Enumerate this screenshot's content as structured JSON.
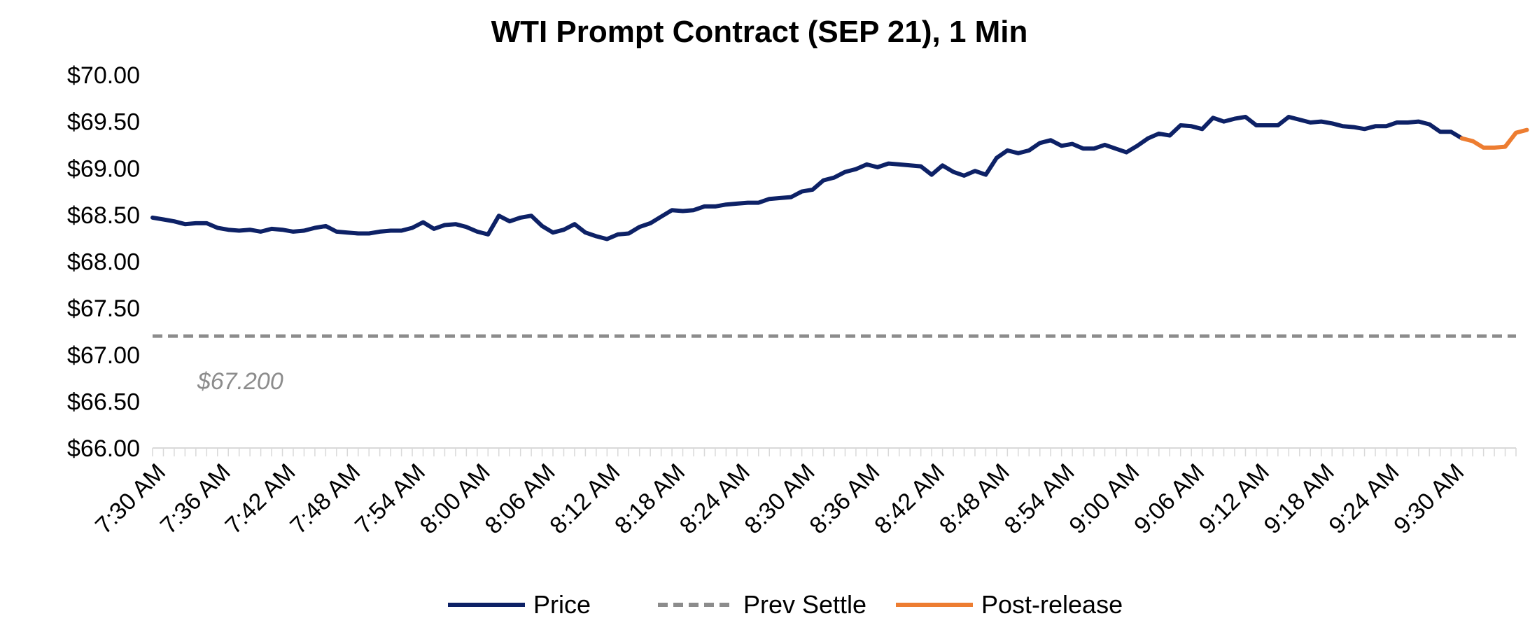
{
  "chart_data": {
    "type": "line",
    "title": "WTI Prompt Contract (SEP 21), 1 Min",
    "xlabel": "",
    "ylabel": "",
    "ylim": [
      66.0,
      70.0
    ],
    "yticks": [
      66.0,
      66.5,
      67.0,
      67.5,
      68.0,
      68.5,
      69.0,
      69.5,
      70.0
    ],
    "ytick_labels": [
      "$66.00",
      "$66.50",
      "$67.00",
      "$67.50",
      "$68.00",
      "$68.50",
      "$69.00",
      "$69.50",
      "$70.00"
    ],
    "x_minutes": 126,
    "x_tick_step_minutes": 6,
    "x_tick_labels": [
      "7:30 AM",
      "7:36 AM",
      "7:42 AM",
      "7:48 AM",
      "7:54 AM",
      "8:00 AM",
      "8:06 AM",
      "8:12 AM",
      "8:18 AM",
      "8:24 AM",
      "8:30 AM",
      "8:36 AM",
      "8:42 AM",
      "8:48 AM",
      "8:54 AM",
      "9:00 AM",
      "9:06 AM",
      "9:12 AM",
      "9:18 AM",
      "9:24 AM",
      "9:30 AM"
    ],
    "series": [
      {
        "name": "Price",
        "color": "#0d2166",
        "style": "solid",
        "start_minute": 0,
        "values": [
          68.47,
          68.45,
          68.43,
          68.4,
          68.41,
          68.41,
          68.36,
          68.34,
          68.33,
          68.34,
          68.32,
          68.35,
          68.34,
          68.32,
          68.33,
          68.36,
          68.38,
          68.32,
          68.31,
          68.3,
          68.3,
          68.32,
          68.33,
          68.33,
          68.36,
          68.42,
          68.35,
          68.39,
          68.4,
          68.37,
          68.32,
          68.29,
          68.49,
          68.43,
          68.47,
          68.49,
          68.38,
          68.31,
          68.34,
          68.4,
          68.31,
          68.27,
          68.24,
          68.29,
          68.3,
          68.37,
          68.41,
          68.48,
          68.55,
          68.54,
          68.55,
          68.59,
          68.59,
          68.61,
          68.62,
          68.63,
          68.63,
          68.67,
          68.68,
          68.69,
          68.75,
          68.77,
          68.87,
          68.9,
          68.96,
          68.99,
          69.04,
          69.01,
          69.05,
          69.04,
          69.03,
          69.02,
          68.93,
          69.03,
          68.96,
          68.92,
          68.97,
          68.93,
          69.11,
          69.19,
          69.16,
          69.19,
          69.27,
          69.3,
          69.24,
          69.26,
          69.21,
          69.21,
          69.25,
          69.21,
          69.17,
          69.24,
          69.32,
          69.37,
          69.35,
          69.46,
          69.45,
          69.42,
          69.54,
          69.5,
          69.53,
          69.55,
          69.46,
          69.46,
          69.46,
          69.55,
          69.52,
          69.49,
          69.5,
          69.48,
          69.45,
          69.44,
          69.42,
          69.45,
          69.45,
          69.49,
          69.49,
          69.5,
          69.47,
          69.39,
          69.39,
          69.32
        ]
      },
      {
        "name": "Prev Settle",
        "color": "#8c8c8c",
        "style": "dashed",
        "constant": 67.2
      },
      {
        "name": "Post-release",
        "color": "#ed7d31",
        "style": "solid",
        "start_minute": 121,
        "values": [
          69.32,
          69.29,
          69.22,
          69.22,
          69.23,
          69.38,
          69.41
        ]
      }
    ],
    "annotations": [
      {
        "text": "$67.200",
        "x_minute": 4,
        "y_value": 66.72
      }
    ],
    "legend": {
      "position": "bottom",
      "entries": [
        "Price",
        "Prev Settle",
        "Post-release"
      ]
    }
  }
}
